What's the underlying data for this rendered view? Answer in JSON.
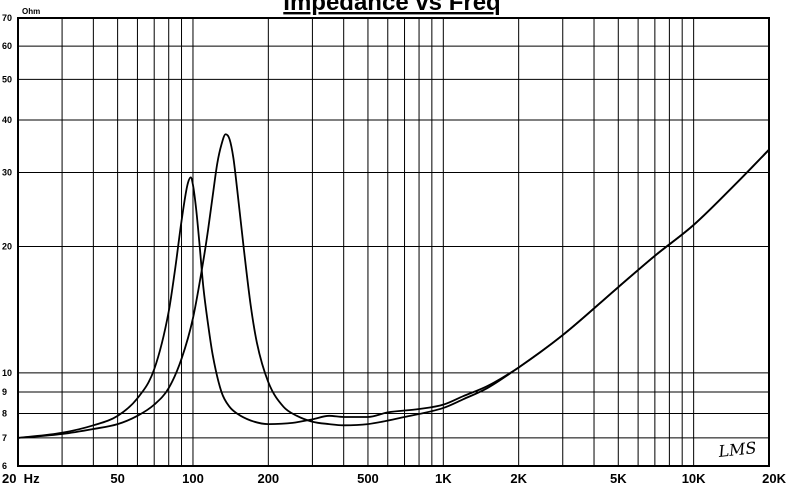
{
  "chart_data": {
    "type": "line",
    "title": "Impedance vs Freq",
    "ylabel": "Ohm",
    "xlabel": "",
    "x_scale": "log",
    "y_scale": "log",
    "xlim": [
      20,
      20000
    ],
    "ylim": [
      6,
      70
    ],
    "grid": true,
    "x_tick_labels": [
      {
        "value": 20,
        "label": "20  Hz"
      },
      {
        "value": 50,
        "label": "50"
      },
      {
        "value": 100,
        "label": "100"
      },
      {
        "value": 200,
        "label": "200"
      },
      {
        "value": 500,
        "label": "500"
      },
      {
        "value": 1000,
        "label": "1K"
      },
      {
        "value": 2000,
        "label": "2K"
      },
      {
        "value": 5000,
        "label": "5K"
      },
      {
        "value": 10000,
        "label": "10K"
      },
      {
        "value": 20000,
        "label": "20K"
      }
    ],
    "y_tick_labels": [
      {
        "value": 70,
        "label": "70"
      },
      {
        "value": 60,
        "label": "60"
      },
      {
        "value": 50,
        "label": "50"
      },
      {
        "value": 40,
        "label": "40"
      },
      {
        "value": 30,
        "label": "30"
      },
      {
        "value": 20,
        "label": "20"
      },
      {
        "value": 10,
        "label": "10"
      },
      {
        "value": 9,
        "label": "9"
      },
      {
        "value": 8,
        "label": "8"
      },
      {
        "value": 7,
        "label": "7"
      },
      {
        "value": 6,
        "label": "6"
      }
    ],
    "series": [
      {
        "x": [
          20,
          30,
          40,
          50,
          60,
          70,
          80,
          85,
          90,
          95,
          98,
          100,
          103,
          106,
          110,
          115,
          120,
          130,
          140,
          150,
          170,
          200,
          250,
          300,
          350,
          400,
          500,
          600,
          800,
          1000,
          1200,
          1500,
          2000,
          3000,
          5000,
          7000,
          10000,
          15000,
          20000
        ],
        "y": [
          7.0,
          7.2,
          7.5,
          7.9,
          8.7,
          10.2,
          14.0,
          17.8,
          23.0,
          28.0,
          29.2,
          28.0,
          24.5,
          20.5,
          16.0,
          13.0,
          11.0,
          9.0,
          8.3,
          8.0,
          7.7,
          7.55,
          7.6,
          7.75,
          7.9,
          7.85,
          7.85,
          8.05,
          8.2,
          8.4,
          8.8,
          9.3,
          10.3,
          12.3,
          16.0,
          19.0,
          22.5,
          28.5,
          34.0
        ]
      },
      {
        "x": [
          20,
          30,
          40,
          50,
          60,
          70,
          80,
          90,
          100,
          110,
          115,
          120,
          125,
          130,
          135,
          140,
          145,
          150,
          160,
          170,
          180,
          200,
          230,
          260,
          300,
          350,
          400,
          500,
          700,
          1000,
          1200,
          1500,
          2000,
          3000,
          5000,
          7000,
          10000,
          15000,
          20000
        ],
        "y": [
          7.0,
          7.15,
          7.35,
          7.55,
          7.9,
          8.4,
          9.2,
          10.8,
          13.5,
          18.5,
          22.0,
          26.5,
          31.5,
          35.0,
          37.0,
          36.0,
          32.5,
          27.5,
          19.5,
          14.5,
          11.8,
          9.5,
          8.3,
          7.9,
          7.65,
          7.55,
          7.5,
          7.55,
          7.85,
          8.25,
          8.65,
          9.2,
          10.3,
          12.3,
          16.0,
          19.0,
          22.5,
          28.5,
          34.0
        ]
      }
    ],
    "annotations": [
      "LMS"
    ]
  }
}
